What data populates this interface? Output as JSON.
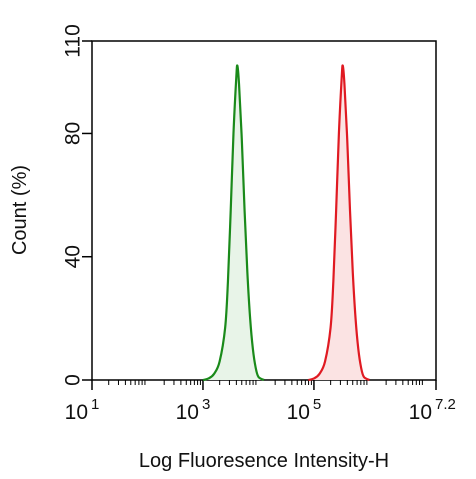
{
  "chart_data": {
    "type": "area",
    "xlabel": "Log Fluoresence Intensity-H",
    "ylabel": "Count  (%)",
    "x_scale": "log10",
    "xlim": [
      1,
      7.2
    ],
    "ylim": [
      0,
      110
    ],
    "x_ticks": [
      {
        "base": "10",
        "exp": "1",
        "value": 1
      },
      {
        "base": "10",
        "exp": "3",
        "value": 3
      },
      {
        "base": "10",
        "exp": "5",
        "value": 5
      },
      {
        "base": "10",
        "exp": "7.2",
        "value": 7.2
      }
    ],
    "y_ticks": [
      {
        "label": "0",
        "value": 0
      },
      {
        "label": "40",
        "value": 40
      },
      {
        "label": "80",
        "value": 80
      },
      {
        "label": "110",
        "value": 110
      }
    ],
    "grid": false,
    "legend": "none",
    "series": [
      {
        "color": "#1a8a1a",
        "fill": "#e8f4e8",
        "x": [
          3.0,
          3.1,
          3.2,
          3.3,
          3.4,
          3.45,
          3.5,
          3.55,
          3.6,
          3.62,
          3.65,
          3.7,
          3.75,
          3.8,
          3.85,
          3.9,
          3.95,
          4.0,
          4.1
        ],
        "y": [
          0,
          0.5,
          2,
          6,
          17,
          32,
          55,
          80,
          98,
          102,
          96,
          78,
          55,
          35,
          20,
          10,
          4,
          1,
          0
        ]
      },
      {
        "color": "#e01a22",
        "fill": "#fbe3e3",
        "x": [
          4.9,
          5.0,
          5.1,
          5.2,
          5.3,
          5.35,
          5.4,
          5.45,
          5.5,
          5.52,
          5.55,
          5.6,
          5.65,
          5.7,
          5.75,
          5.8,
          5.85,
          5.9,
          6.0
        ],
        "y": [
          0,
          0.5,
          2,
          6,
          17,
          32,
          55,
          80,
          98,
          102,
          96,
          78,
          55,
          35,
          20,
          10,
          4,
          1,
          0
        ]
      }
    ]
  }
}
